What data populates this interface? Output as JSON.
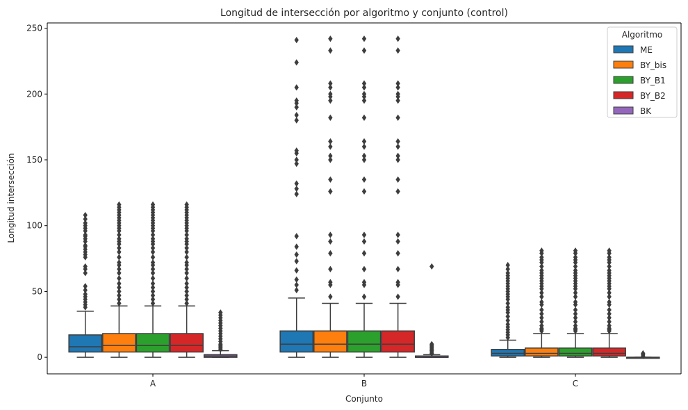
{
  "chart_data": {
    "type": "box",
    "title": "Longitud de intersección por algoritmo y conjunto (control)",
    "xlabel": "Conjunto",
    "ylabel": "Longitud intersección",
    "categories": [
      "A",
      "B",
      "C"
    ],
    "ylim": [
      -12.6,
      254
    ],
    "yticks": [
      0,
      50,
      100,
      150,
      200,
      250
    ],
    "grid": false,
    "legend": {
      "title": "Algoritmo",
      "position": "top-right"
    },
    "series": [
      {
        "name": "ME",
        "color": "#1f77b4",
        "boxes": [
          {
            "q1": 4,
            "median": 8,
            "q3": 17,
            "whisker_low": 0,
            "whisker_high": 35,
            "outliers": [
              38,
              40,
              42,
              44,
              46,
              48,
              51,
              54,
              64,
              67,
              69,
              76,
              78,
              80,
              82,
              84,
              85,
              88,
              90,
              92,
              93,
              96,
              98,
              100,
              102,
              105,
              108
            ]
          },
          {
            "q1": 4,
            "median": 10,
            "q3": 20,
            "whisker_low": 0,
            "whisker_high": 45,
            "outliers": [
              51,
              55,
              59,
              66,
              73,
              78,
              84,
              92,
              124,
              128,
              132,
              147,
              150,
              155,
              157,
              180,
              184,
              190,
              193,
              195,
              205,
              224,
              241
            ]
          },
          {
            "q1": 1,
            "median": 3,
            "q3": 6,
            "whisker_low": 0,
            "whisker_high": 13,
            "outliers": [
              15,
              17,
              19,
              21,
              23,
              25,
              28,
              31,
              34,
              36,
              38,
              41,
              44,
              46,
              48,
              50,
              52,
              54,
              56,
              58,
              60,
              62,
              64,
              67,
              70
            ]
          }
        ]
      },
      {
        "name": "BY_bis",
        "color": "#ff7f0e",
        "boxes": [
          {
            "q1": 4,
            "median": 9,
            "q3": 18,
            "whisker_low": 0,
            "whisker_high": 39,
            "outliers": [
              41,
              44,
              47,
              50,
              53,
              56,
              60,
              64,
              67,
              70,
              72,
              76,
              80,
              83,
              86,
              88,
              90,
              93,
              96,
              98,
              100,
              102,
              104,
              106,
              108,
              110,
              112,
              114,
              116
            ]
          },
          {
            "q1": 4,
            "median": 10,
            "q3": 20,
            "whisker_low": 0,
            "whisker_high": 41,
            "outliers": [
              46,
              55,
              57,
              67,
              79,
              88,
              93,
              126,
              135,
              150,
              153,
              160,
              164,
              182,
              195,
              198,
              200,
              205,
              208,
              233,
              242
            ]
          },
          {
            "q1": 1,
            "median": 3,
            "q3": 7,
            "whisker_low": 0,
            "whisker_high": 18,
            "outliers": [
              20,
              21,
              22,
              24,
              27,
              30,
              33,
              36,
              40,
              42,
              46,
              49,
              52,
              54,
              56,
              58,
              60,
              62,
              64,
              66,
              69,
              72,
              74,
              76,
              79,
              81
            ]
          }
        ]
      },
      {
        "name": "BY_B1",
        "color": "#2ca02c",
        "boxes": [
          {
            "q1": 4,
            "median": 9,
            "q3": 18,
            "whisker_low": 0,
            "whisker_high": 39,
            "outliers": [
              41,
              44,
              47,
              50,
              53,
              56,
              60,
              64,
              67,
              70,
              72,
              76,
              80,
              83,
              86,
              88,
              90,
              93,
              96,
              98,
              100,
              102,
              104,
              106,
              108,
              110,
              112,
              114,
              116
            ]
          },
          {
            "q1": 4,
            "median": 10,
            "q3": 20,
            "whisker_low": 0,
            "whisker_high": 41,
            "outliers": [
              46,
              55,
              57,
              67,
              79,
              88,
              93,
              126,
              135,
              150,
              153,
              160,
              164,
              182,
              195,
              198,
              200,
              205,
              208,
              233,
              242
            ]
          },
          {
            "q1": 1,
            "median": 3,
            "q3": 7,
            "whisker_low": 0,
            "whisker_high": 18,
            "outliers": [
              20,
              21,
              22,
              24,
              27,
              30,
              33,
              36,
              40,
              42,
              46,
              49,
              52,
              54,
              56,
              58,
              60,
              62,
              64,
              66,
              69,
              72,
              74,
              76,
              79,
              81
            ]
          }
        ]
      },
      {
        "name": "BY_B2",
        "color": "#d62728",
        "boxes": [
          {
            "q1": 4,
            "median": 9,
            "q3": 18,
            "whisker_low": 0,
            "whisker_high": 39,
            "outliers": [
              41,
              44,
              47,
              50,
              53,
              56,
              60,
              64,
              67,
              70,
              72,
              76,
              80,
              83,
              86,
              88,
              90,
              93,
              96,
              98,
              100,
              102,
              104,
              106,
              108,
              110,
              112,
              114,
              116
            ]
          },
          {
            "q1": 4,
            "median": 10,
            "q3": 20,
            "whisker_low": 0,
            "whisker_high": 41,
            "outliers": [
              46,
              55,
              57,
              67,
              79,
              88,
              93,
              126,
              135,
              150,
              153,
              160,
              164,
              182,
              195,
              198,
              200,
              205,
              208,
              233,
              242
            ]
          },
          {
            "q1": 1,
            "median": 3,
            "q3": 7,
            "whisker_low": 0,
            "whisker_high": 18,
            "outliers": [
              20,
              21,
              22,
              24,
              27,
              30,
              33,
              36,
              40,
              42,
              46,
              49,
              52,
              54,
              56,
              58,
              60,
              62,
              64,
              66,
              69,
              72,
              74,
              76,
              79,
              81
            ]
          }
        ]
      },
      {
        "name": "BK",
        "color": "#9467bd",
        "boxes": [
          {
            "q1": 0,
            "median": 1,
            "q3": 2,
            "whisker_low": 0,
            "whisker_high": 5,
            "outliers": [
              6,
              7,
              8,
              9,
              10,
              12,
              14,
              16,
              18,
              20,
              22,
              24,
              26,
              28,
              30,
              32,
              34
            ]
          },
          {
            "q1": 0,
            "median": 0,
            "q3": 1,
            "whisker_low": 0,
            "whisker_high": 2,
            "outliers": [
              3,
              4,
              5,
              6,
              7,
              8,
              9,
              10,
              69
            ]
          },
          {
            "q1": 0,
            "median": 0,
            "q3": 0,
            "whisker_low": 0,
            "whisker_high": 0,
            "outliers": [
              1,
              2,
              3
            ]
          }
        ]
      }
    ]
  }
}
